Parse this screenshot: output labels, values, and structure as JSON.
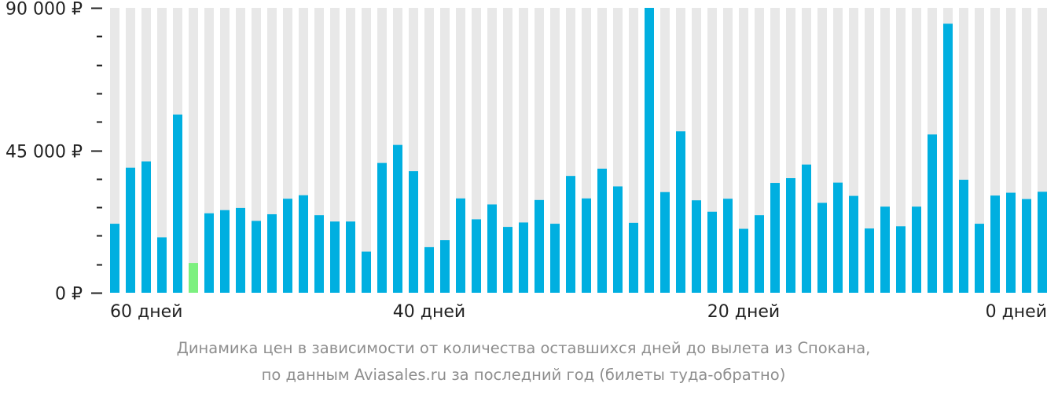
{
  "chart_data": {
    "type": "bar",
    "currency_suffix": " ₽",
    "ylim": [
      0,
      90000
    ],
    "y_ticks": [
      {
        "value": 0,
        "label": "0 ₽"
      },
      {
        "value": 45000,
        "label": "45 000 ₽"
      },
      {
        "value": 90000,
        "label": "90 000 ₽"
      }
    ],
    "minor_tick_step": 9000,
    "x_labels": [
      {
        "index": 0,
        "label": "60 дней"
      },
      {
        "index": 20,
        "label": "40 дней"
      },
      {
        "index": 40,
        "label": "20 дней"
      },
      {
        "index": 59,
        "label": "0 дней"
      }
    ],
    "values": [
      21800,
      39500,
      41500,
      17500,
      56300,
      9400,
      25100,
      26100,
      26800,
      22700,
      24800,
      29700,
      30800,
      24500,
      22500,
      22500,
      13000,
      41000,
      46700,
      38400,
      14400,
      16600,
      29800,
      23200,
      27900,
      20800,
      22200,
      29300,
      21800,
      36900,
      29800,
      39200,
      33600,
      22100,
      90000,
      31800,
      51000,
      29200,
      25600,
      29700,
      20200,
      24500,
      34700,
      36200,
      40500,
      28400,
      34800,
      30600,
      20300,
      27200,
      21000,
      27200,
      50000,
      85000,
      35700,
      21800,
      30700,
      31600,
      29600,
      31900
    ],
    "highlight_index": 5,
    "colors": {
      "bar": "#00afe0",
      "highlight": "#7cf07f",
      "column_bg": "#e8e8e8",
      "axis": "#222222"
    },
    "caption_lines": [
      "Динамика цен в зависимости от количества оставшихся дней до вылета из Спокана,",
      "по данным Aviasales.ru за последний год (билеты туда-обратно)"
    ]
  }
}
